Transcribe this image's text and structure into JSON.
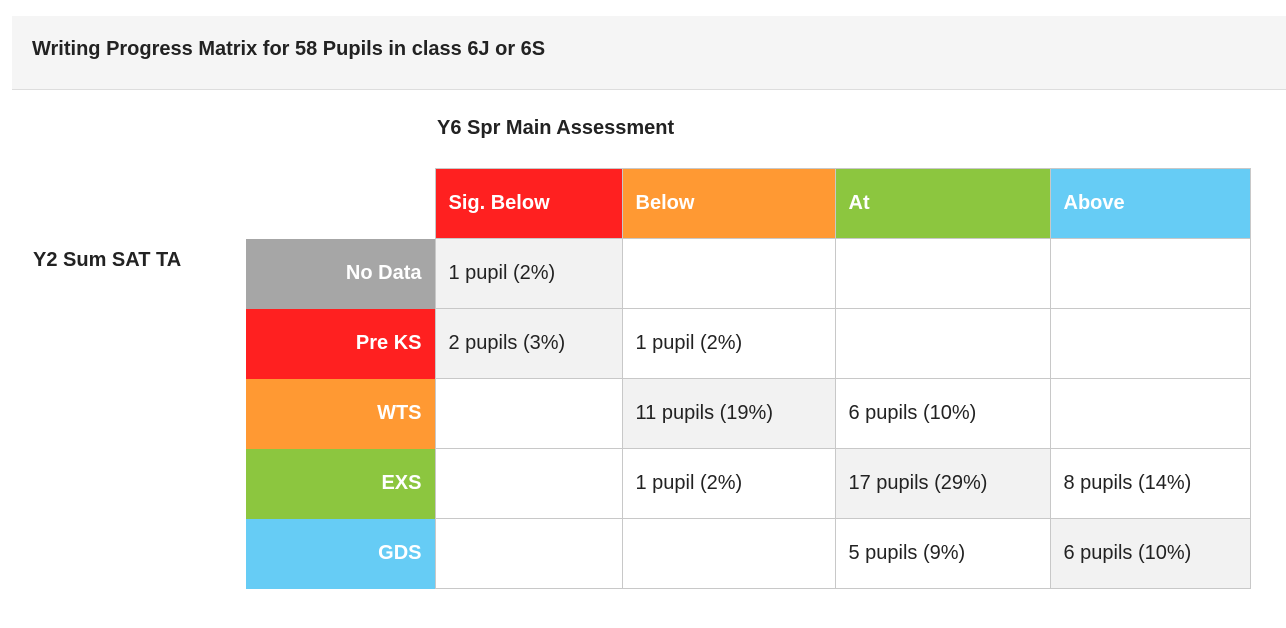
{
  "title": "Writing Progress Matrix for 58 Pupils in class 6J or 6S",
  "column_axis_label": "Y6 Spr Main Assessment",
  "row_axis_label": "Y2 Sum SAT TA",
  "columns": [
    {
      "label": "Sig. Below",
      "color": "#ff2020"
    },
    {
      "label": "Below",
      "color": "#ff9933"
    },
    {
      "label": "At",
      "color": "#8cc63f"
    },
    {
      "label": "Above",
      "color": "#66ccf5"
    }
  ],
  "rows": [
    {
      "label": "No Data",
      "color": "#a6a6a6",
      "cells": [
        "1 pupil (2%)",
        "",
        "",
        ""
      ]
    },
    {
      "label": "Pre KS",
      "color": "#ff2020",
      "cells": [
        "2 pupils (3%)",
        "1 pupil (2%)",
        "",
        ""
      ]
    },
    {
      "label": "WTS",
      "color": "#ff9933",
      "cells": [
        "",
        "11 pupils (19%)",
        "6 pupils (10%)",
        ""
      ]
    },
    {
      "label": "EXS",
      "color": "#8cc63f",
      "cells": [
        "",
        "1 pupil (2%)",
        "17 pupils (29%)",
        "8 pupils (14%)"
      ]
    },
    {
      "label": "GDS",
      "color": "#66ccf5",
      "cells": [
        "",
        "",
        "5 pupils (9%)",
        "6 pupils (10%)"
      ]
    }
  ]
}
